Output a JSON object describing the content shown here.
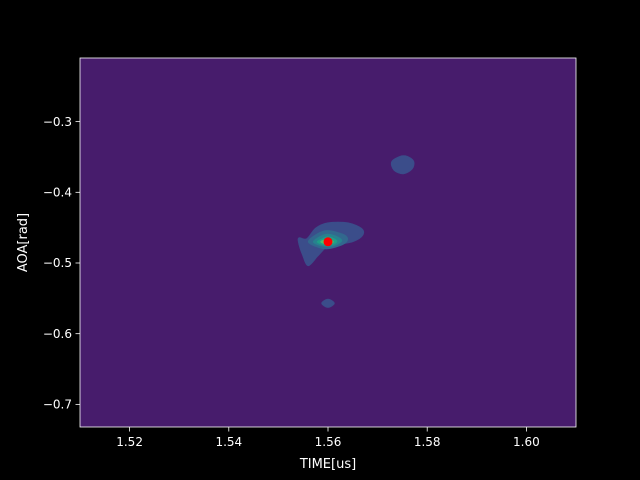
{
  "chart_data": {
    "type": "heatmap",
    "subtype": "filled-contour",
    "title": "",
    "xlabel": "TIME[us]",
    "ylabel": "AOA[rad]",
    "xlim": [
      1.51,
      1.61
    ],
    "ylim": [
      -0.732,
      -0.21
    ],
    "xticks": [
      1.52,
      1.54,
      1.56,
      1.58,
      1.6
    ],
    "xtick_labels": [
      "1.52",
      "1.54",
      "1.56",
      "1.58",
      "1.60"
    ],
    "yticks": [
      -0.3,
      -0.4,
      -0.5,
      -0.6,
      -0.7
    ],
    "ytick_labels": [
      "−0.3",
      "−0.4",
      "−0.5",
      "−0.6",
      "−0.7"
    ],
    "grid": false,
    "background_level_color": "#471c6c",
    "contour_levels": [
      {
        "level": 1,
        "color": "#3b4d8a",
        "points": [
          [
            1.5557,
            -0.4655
          ],
          [
            1.5575,
            -0.4505
          ],
          [
            1.56,
            -0.443
          ],
          [
            1.564,
            -0.443
          ],
          [
            1.5668,
            -0.451
          ],
          [
            1.567,
            -0.461
          ],
          [
            1.565,
            -0.47
          ],
          [
            1.562,
            -0.4735
          ],
          [
            1.56,
            -0.476
          ],
          [
            1.558,
            -0.49
          ],
          [
            1.556,
            -0.504
          ],
          [
            1.5548,
            -0.488
          ],
          [
            1.554,
            -0.47
          ],
          [
            1.5542,
            -0.464
          ]
        ]
      },
      {
        "level": 1,
        "color": "#3b4d8a",
        "points": [
          [
            1.5728,
            -0.357
          ],
          [
            1.5745,
            -0.349
          ],
          [
            1.576,
            -0.349
          ],
          [
            1.5773,
            -0.356
          ],
          [
            1.577,
            -0.367
          ],
          [
            1.5752,
            -0.374
          ],
          [
            1.5733,
            -0.369
          ]
        ]
      },
      {
        "level": 1,
        "color": "#3b4d8a",
        "points": [
          [
            1.5587,
            -0.557
          ],
          [
            1.56,
            -0.551
          ],
          [
            1.5613,
            -0.557
          ],
          [
            1.56,
            -0.563
          ]
        ]
      },
      {
        "level": 2,
        "color": "#32688e",
        "points": [
          [
            1.556,
            -0.47
          ],
          [
            1.558,
            -0.458
          ],
          [
            1.56,
            -0.454
          ],
          [
            1.563,
            -0.459
          ],
          [
            1.564,
            -0.466
          ],
          [
            1.563,
            -0.474
          ],
          [
            1.56,
            -0.48
          ],
          [
            1.558,
            -0.478
          ]
        ]
      },
      {
        "level": 3,
        "color": "#27828e",
        "points": [
          [
            1.557,
            -0.47
          ],
          [
            1.5585,
            -0.462
          ],
          [
            1.56,
            -0.459
          ],
          [
            1.562,
            -0.463
          ],
          [
            1.5628,
            -0.469
          ],
          [
            1.5615,
            -0.475
          ],
          [
            1.56,
            -0.477
          ],
          [
            1.5582,
            -0.475
          ]
        ]
      },
      {
        "level": 4,
        "color": "#1f9f88",
        "points": [
          [
            1.5578,
            -0.47
          ],
          [
            1.559,
            -0.465
          ],
          [
            1.56,
            -0.463
          ],
          [
            1.5614,
            -0.466
          ],
          [
            1.5618,
            -0.47
          ],
          [
            1.561,
            -0.474
          ],
          [
            1.56,
            -0.475
          ],
          [
            1.5588,
            -0.474
          ]
        ]
      },
      {
        "level": 5,
        "color": "#4ac16d",
        "points": [
          [
            1.5585,
            -0.47
          ],
          [
            1.5594,
            -0.467
          ],
          [
            1.5604,
            -0.4668
          ],
          [
            1.5611,
            -0.47
          ],
          [
            1.5604,
            -0.473
          ],
          [
            1.5594,
            -0.473
          ]
        ]
      },
      {
        "level": 6,
        "color": "#a0da39",
        "points": [
          [
            1.5591,
            -0.47
          ],
          [
            1.5597,
            -0.4684
          ],
          [
            1.5605,
            -0.4686
          ],
          [
            1.5607,
            -0.47
          ],
          [
            1.5603,
            -0.4716
          ],
          [
            1.5595,
            -0.4714
          ]
        ]
      }
    ],
    "markers": [
      {
        "x": 1.56,
        "y": -0.47,
        "color": "#ff0000"
      }
    ],
    "axes_color": "#ffffff",
    "figure_background": "#000000"
  }
}
